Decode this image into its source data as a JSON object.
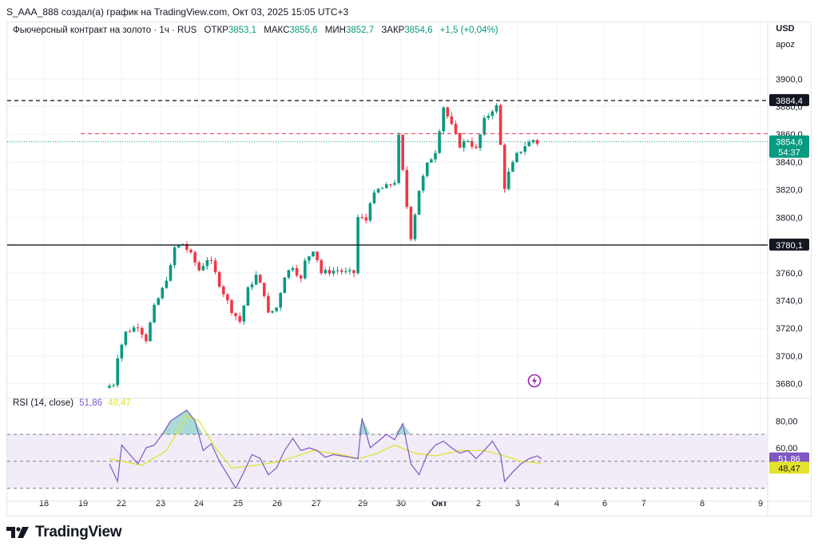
{
  "header": {
    "author_line": "S_AAA_888 создал(а) график на TradingView.com, Окт 03, 2025 15:05 UTC+3"
  },
  "legend": {
    "title": "Фьючерсный контракт на золото · 1ч · RUS",
    "open_label": "ОТКР",
    "open_value": "3853,1",
    "high_label": "МАКС",
    "high_value": "3855,6",
    "low_label": "МИН",
    "low_value": "3852,7",
    "close_label": "ЗАКР",
    "close_value": "3854,6",
    "change": "+1,5 (+0,04%)"
  },
  "axis": {
    "currency": "USD",
    "scale_mode": "apoz"
  },
  "rsi_legend": {
    "label": "RSI (14, close)",
    "rsi_value": "51,86",
    "ma_value": "48,47"
  },
  "footer": {
    "brand": "TradingView"
  },
  "colors": {
    "up": "#089981",
    "down": "#f23645",
    "rsi": "#7e57c2",
    "rsi_ma": "#e3e32c",
    "band_fill": "#ede7f6",
    "last_price_bg": "#089981"
  },
  "chart_data": [
    {
      "type": "candlestick",
      "ylim": [
        3670,
        3912
      ],
      "yticks": [
        "3680,0",
        "3700,0",
        "3720,0",
        "3740,0",
        "3760,0",
        "3780,0",
        "3800,0",
        "3820,0",
        "3840,0",
        "3860,0",
        "3880,0",
        "3900,0"
      ],
      "xticks": [
        "18",
        "19",
        "22",
        "23",
        "24",
        "25",
        "26",
        "27",
        "29",
        "30",
        "Окт",
        "2",
        "3",
        "4",
        "6",
        "7",
        "8",
        "9"
      ],
      "path_points": [
        [
          0,
          3677
        ],
        [
          2,
          3680
        ],
        [
          3,
          3700
        ],
        [
          5,
          3717
        ],
        [
          8,
          3722
        ],
        [
          10,
          3712
        ],
        [
          12,
          3735
        ],
        [
          14,
          3748
        ],
        [
          16,
          3764
        ],
        [
          17,
          3778
        ],
        [
          19,
          3781
        ],
        [
          21,
          3773
        ],
        [
          23,
          3762
        ],
        [
          25,
          3770
        ],
        [
          26,
          3767
        ],
        [
          28,
          3752
        ],
        [
          31,
          3733
        ],
        [
          33,
          3725
        ],
        [
          35,
          3748
        ],
        [
          37,
          3758
        ],
        [
          39,
          3745
        ],
        [
          40,
          3730
        ],
        [
          42,
          3735
        ],
        [
          44,
          3758
        ],
        [
          46,
          3765
        ],
        [
          48,
          3755
        ],
        [
          49,
          3768
        ],
        [
          51,
          3777
        ],
        [
          52,
          3770
        ],
        [
          53,
          3760
        ],
        [
          55,
          3761
        ],
        [
          57,
          3762
        ],
        [
          59,
          3760
        ],
        [
          61,
          3760
        ],
        [
          62,
          3800
        ],
        [
          64,
          3798
        ],
        [
          65,
          3812
        ],
        [
          67,
          3820
        ],
        [
          69,
          3822
        ],
        [
          71,
          3826
        ],
        [
          72,
          3858
        ],
        [
          74,
          3808
        ],
        [
          75,
          3786
        ],
        [
          77,
          3820
        ],
        [
          79,
          3838
        ],
        [
          81,
          3848
        ],
        [
          83,
          3880
        ],
        [
          85,
          3866
        ],
        [
          87,
          3852
        ],
        [
          89,
          3856
        ],
        [
          91,
          3849
        ],
        [
          93,
          3870
        ],
        [
          95,
          3878
        ],
        [
          96,
          3880
        ],
        [
          97,
          3852
        ],
        [
          98,
          3822
        ],
        [
          99,
          3832
        ],
        [
          101,
          3845
        ],
        [
          103,
          3852
        ],
        [
          105,
          3856
        ],
        [
          106,
          3854
        ]
      ],
      "horizontal_levels": [
        {
          "value": 3884.4,
          "label": "3884,4",
          "style": "dashed-dark"
        },
        {
          "value": 3860.5,
          "label": "",
          "style": "dashed-red"
        },
        {
          "value": 3854.6,
          "label": "3854,6",
          "countdown": "54:37",
          "style": "dotted-green"
        },
        {
          "value": 3780.1,
          "label": "3780,1",
          "style": "solid-dark"
        }
      ]
    },
    {
      "type": "line",
      "name": "RSI (14, close)",
      "ylim": [
        25,
        95
      ],
      "yticks": [
        "80,00",
        "60,00"
      ],
      "bands": [
        70,
        50,
        30
      ],
      "rsi_points": [
        [
          0,
          48
        ],
        [
          2,
          35
        ],
        [
          3,
          62
        ],
        [
          5,
          55
        ],
        [
          7,
          48
        ],
        [
          9,
          60
        ],
        [
          11,
          62
        ],
        [
          13,
          70
        ],
        [
          15,
          80
        ],
        [
          17,
          84
        ],
        [
          19,
          88
        ],
        [
          21,
          80
        ],
        [
          23,
          58
        ],
        [
          25,
          63
        ],
        [
          27,
          50
        ],
        [
          29,
          40
        ],
        [
          31,
          30
        ],
        [
          33,
          42
        ],
        [
          35,
          55
        ],
        [
          37,
          52
        ],
        [
          39,
          40
        ],
        [
          41,
          45
        ],
        [
          43,
          58
        ],
        [
          45,
          67
        ],
        [
          47,
          58
        ],
        [
          49,
          60
        ],
        [
          51,
          58
        ],
        [
          53,
          53
        ],
        [
          55,
          55
        ],
        [
          57,
          54
        ],
        [
          59,
          53
        ],
        [
          61,
          52
        ],
        [
          62,
          82
        ],
        [
          64,
          60
        ],
        [
          66,
          65
        ],
        [
          68,
          70
        ],
        [
          70,
          66
        ],
        [
          72,
          78
        ],
        [
          74,
          48
        ],
        [
          76,
          40
        ],
        [
          78,
          55
        ],
        [
          80,
          62
        ],
        [
          82,
          65
        ],
        [
          84,
          60
        ],
        [
          86,
          56
        ],
        [
          88,
          58
        ],
        [
          90,
          52
        ],
        [
          92,
          58
        ],
        [
          94,
          65
        ],
        [
          96,
          55
        ],
        [
          97,
          35
        ],
        [
          99,
          42
        ],
        [
          101,
          48
        ],
        [
          103,
          52
        ],
        [
          105,
          54
        ],
        [
          106,
          51.86
        ]
      ],
      "ma_points": [
        [
          0,
          52
        ],
        [
          8,
          47
        ],
        [
          14,
          58
        ],
        [
          19,
          84
        ],
        [
          22,
          80
        ],
        [
          26,
          60
        ],
        [
          30,
          45
        ],
        [
          36,
          47
        ],
        [
          42,
          50
        ],
        [
          50,
          58
        ],
        [
          57,
          55
        ],
        [
          61,
          52
        ],
        [
          65,
          55
        ],
        [
          70,
          62
        ],
        [
          75,
          56
        ],
        [
          80,
          54
        ],
        [
          86,
          58
        ],
        [
          92,
          58
        ],
        [
          97,
          54
        ],
        [
          101,
          50
        ],
        [
          106,
          48.47
        ]
      ]
    }
  ]
}
